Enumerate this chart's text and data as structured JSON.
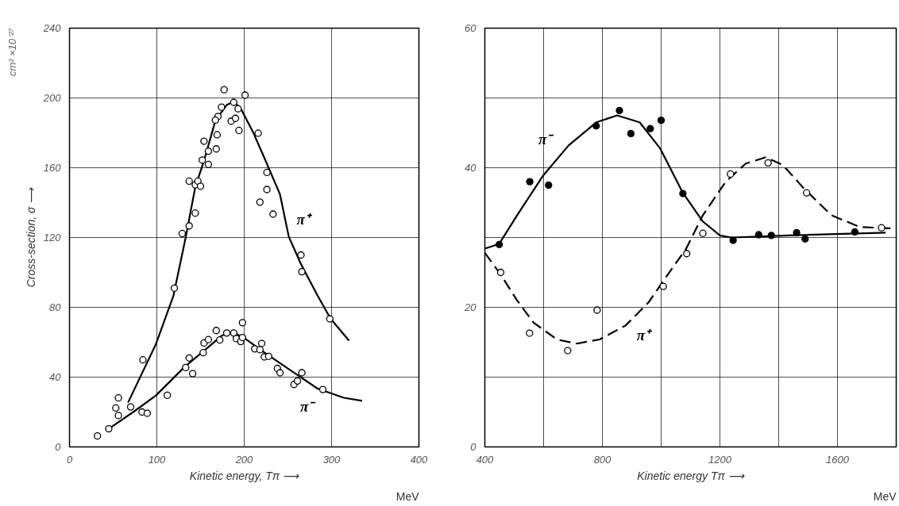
{
  "chart_data": [
    {
      "type": "line",
      "xlabel": "Kinetic energy, Tπ ⟶",
      "ylabel": "Cross-section, σ ⟶",
      "xlim": [
        0,
        400
      ],
      "xticks": [
        0,
        100,
        200,
        300,
        400
      ],
      "ylim": [
        0,
        240
      ],
      "yticks": [
        0,
        40,
        80,
        120,
        160,
        200,
        240
      ],
      "grid": true,
      "series": [
        {
          "name": "π⁺",
          "color": "#000000",
          "x": [
            67,
            99,
            119,
            133,
            144,
            154,
            167,
            180,
            188,
            196,
            210,
            225,
            241,
            251,
            265,
            284,
            299,
            320
          ],
          "values": [
            25.4,
            59,
            86.7,
            120,
            149,
            164,
            187,
            196,
            197.8,
            194,
            180.6,
            163.4,
            144.7,
            120.5,
            104.8,
            86.7,
            73.4,
            60.9
          ]
        },
        {
          "name": "π⁻",
          "color": "#000000",
          "x": [
            45,
            73,
            99,
            131,
            156,
            175,
            188,
            200,
            224,
            254,
            284,
            314,
            335
          ],
          "values": [
            10.4,
            20,
            29.5,
            45.5,
            56,
            64,
            65.6,
            62.4,
            53.8,
            43.6,
            33.4,
            28.2,
            26.4
          ]
        },
        {
          "type": "scatter",
          "marker": "circle",
          "color": "#ffffff",
          "x": [
            177,
            201,
            174,
            188,
            193,
            170,
            167,
            185,
            190,
            194,
            216,
            169,
            154,
            159,
            168,
            152,
            159,
            137,
            144,
            147,
            150,
            226,
            226,
            218,
            144,
            233,
            137,
            129,
            120,
            265,
            266,
            298,
            84,
            70,
            56,
            53,
            56
          ],
          "values": [
            204.7,
            201.6,
            194.7,
            197.5,
            193.8,
            189.4,
            187.3,
            186.7,
            188.3,
            181.4,
            179.8,
            178.9,
            175.2,
            169.5,
            170.8,
            164.4,
            161.9,
            152.3,
            150.2,
            152.3,
            149.4,
            157.3,
            147.5,
            140.3,
            134,
            133.4,
            126.7,
            122.3,
            91,
            110,
            100.4,
            73.4,
            49.9,
            22.9,
            28.1,
            22.3,
            18
          ]
        },
        {
          "type": "scatter",
          "marker": "circle",
          "color": "#ffffff",
          "x": [
            32,
            45,
            83,
            89,
            112,
            133,
            137,
            141,
            153,
            154,
            159,
            168,
            172,
            180,
            188,
            191,
            196,
            198,
            198,
            212,
            218,
            220,
            223,
            228,
            238,
            241,
            257,
            261,
            266,
            290
          ],
          "values": [
            6.3,
            10.4,
            20,
            19.3,
            29.6,
            45.5,
            51,
            42,
            54,
            59.6,
            61.5,
            66.7,
            61.3,
            65.3,
            65.3,
            62.1,
            60.4,
            71.2,
            62.7,
            56.2,
            55.7,
            59.3,
            51.6,
            51.9,
            45,
            42.5,
            35.8,
            37.8,
            42.5,
            32.9
          ]
        }
      ],
      "annotations": [
        "MeV",
        "cm² ×10⁻²⁷"
      ]
    },
    {
      "type": "line",
      "xlabel": "Kinetic energy Tπ ⟶",
      "xlim": [
        400,
        1800
      ],
      "xticks": [
        400,
        {
          "value": 600,
          "label": null
        },
        800,
        {
          "value": 1000,
          "label": null
        },
        1200,
        {
          "value": 1400,
          "label": null
        },
        1600
      ],
      "ylim": [
        0,
        60
      ],
      "yticks": [
        0,
        {
          "value": 10,
          "label": null
        },
        20,
        {
          "value": 30,
          "label": null
        },
        40,
        {
          "value": 50,
          "label": null
        },
        60
      ],
      "grid": true,
      "series": [
        {
          "name": "π⁻",
          "color": "#000000",
          "line_style": "solid",
          "x": [
            400,
            449,
            510,
            597,
            685,
            779,
            850,
            927,
            996,
            1074,
            1142,
            1200,
            1239,
            1433,
            1764
          ],
          "values": [
            28.4,
            29.1,
            33.2,
            38.8,
            43.2,
            46.5,
            47.5,
            46.5,
            42.8,
            36.4,
            32.3,
            30.3,
            30,
            30.3,
            30.7
          ]
        },
        {
          "name": "π⁺",
          "color": "#000000",
          "line_style": "dashed",
          "x": [
            400,
            454,
            508,
            566,
            645,
            713,
            791,
            879,
            957,
            1016,
            1085,
            1142,
            1220,
            1288,
            1356,
            1414,
            1482,
            1579,
            1677,
            1791
          ],
          "values": [
            27.8,
            24.7,
            21.1,
            17.8,
            15.4,
            14.8,
            15.4,
            17.4,
            20.7,
            24.3,
            28.4,
            33.2,
            38,
            40.6,
            41.5,
            40.4,
            37.2,
            33.2,
            31.5,
            31.3
          ]
        },
        {
          "type": "scatter",
          "marker": "circle",
          "color": "#000000",
          "x": [
            449,
            553,
            617,
            779,
            858,
            897,
            963,
            1000,
            1074,
            1245,
            1332,
            1375,
            1461,
            1490,
            1659
          ],
          "values": [
            29,
            38,
            37.5,
            46,
            48.2,
            44.9,
            45.6,
            46.8,
            36.3,
            29.6,
            30.4,
            30.3,
            30.7,
            29.8,
            30.8
          ]
        },
        {
          "type": "scatter",
          "marker": "circle",
          "color": "#ffffff",
          "x": [
            454,
            552,
            682,
            782,
            1007,
            1087,
            1142,
            1236,
            1364,
            1495,
            1750
          ],
          "values": [
            25,
            16.3,
            13.8,
            19.6,
            23,
            27.7,
            30.6,
            39.1,
            40.7,
            36.4,
            31.4
          ]
        }
      ],
      "annotations": [
        "MeV"
      ]
    }
  ]
}
